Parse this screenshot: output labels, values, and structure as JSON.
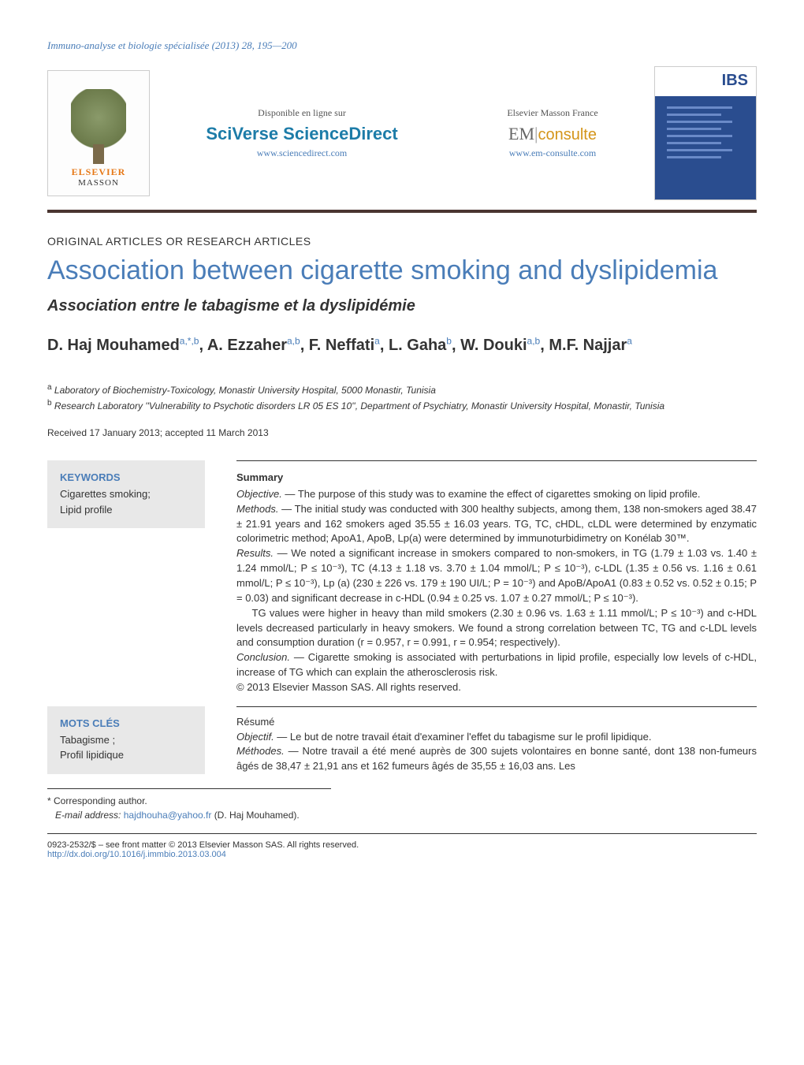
{
  "journal_ref": "Immuno-analyse et biologie spécialisée (2013) 28, 195—200",
  "banner": {
    "elsevier_logo": {
      "line1": "ELSEVIER",
      "line2": "MASSON"
    },
    "center": {
      "left": {
        "label": "Disponible en ligne sur",
        "brand": "SciVerse ScienceDirect",
        "url": "www.sciencedirect.com"
      },
      "right": {
        "label": "Elsevier Masson France",
        "brand_em": "EM",
        "brand_con": "consulte",
        "url": "www.em-consulte.com"
      }
    },
    "cover_badge": "IBS"
  },
  "section_label": "ORIGINAL ARTICLES OR RESEARCH ARTICLES",
  "title": "Association between cigarette smoking and dyslipidemia",
  "subtitle": "Association entre le tabagisme et la dyslipidémie",
  "authors_html": "D. Haj Mouhamed<sup>a,*,b</sup>, A. Ezzaher<sup>a,b</sup>, F. Neffati<sup>a</sup>, L. Gaha<sup>b</sup>, W. Douki<sup>a,b</sup>, M.F. Najjar<sup>a</sup>",
  "affiliations": {
    "a": "Laboratory of Biochemistry-Toxicology, Monastir University Hospital, 5000 Monastir, Tunisia",
    "b": "Research Laboratory ''Vulnerability to Psychotic disorders LR 05 ES 10'', Department of Psychiatry, Monastir University Hospital, Monastir, Tunisia"
  },
  "dates": "Received 17 January 2013; accepted 11 March 2013",
  "keywords": {
    "head": "KEYWORDS",
    "body": "Cigarettes smoking;\nLipid profile"
  },
  "summary": {
    "head": "Summary",
    "objective": "The purpose of this study was to examine the effect of cigarettes smoking on lipid profile.",
    "methods": "The initial study was conducted with 300 healthy subjects, among them, 138 non-smokers aged 38.47 ± 21.91 years and 162 smokers aged 35.55 ± 16.03 years. TG, TC, cHDL, cLDL were determined by enzymatic colorimetric method; ApoA1, ApoB, Lp(a) were determined by immunoturbidimetry on Konélab 30™.",
    "results": "We noted a significant increase in smokers compared to non-smokers, in TG (1.79 ± 1.03 vs. 1.40 ± 1.24 mmol/L; P ≤ 10⁻³), TC (4.13 ± 1.18 vs. 3.70 ± 1.04 mmol/L; P ≤ 10⁻³), c-LDL (1.35 ± 0.56 vs. 1.16 ± 0.61 mmol/L; P ≤ 10⁻³), Lp (a) (230 ± 226 vs. 179 ± 190 UI/L; P = 10⁻³) and ApoB/ApoA1 (0.83 ± 0.52 vs. 0.52 ± 0.15; P = 0.03) and significant decrease in c-HDL (0.94 ± 0.25 vs. 1.07 ± 0.27 mmol/L; P ≤ 10⁻³).",
    "results2": "TG values were higher in heavy than mild smokers (2.30 ± 0.96 vs. 1.63 ± 1.11 mmol/L; P ≤ 10⁻³) and c-HDL levels decreased particularly in heavy smokers. We found a strong correlation between TC, TG and c-LDL levels and consumption duration (r = 0.957, r = 0.991, r = 0.954; respectively).",
    "conclusion": "Cigarette smoking is associated with perturbations in lipid profile, especially low levels of c-HDL, increase of TG which can explain the atherosclerosis risk.",
    "copyright": "© 2013 Elsevier Masson SAS. All rights reserved."
  },
  "motscles": {
    "head": "MOTS CLÉS",
    "body": "Tabagisme ;\nProfil lipidique"
  },
  "resume": {
    "head": "Résumé",
    "objectif": "Le but de notre travail était d'examiner l'effet du tabagisme sur le profil lipidique.",
    "methodes": "Notre travail a été mené auprès de 300 sujets volontaires en bonne santé, dont 138 non-fumeurs âgés de 38,47 ± 21,91 ans et 162 fumeurs âgés de 35,55 ± 16,03 ans. Les"
  },
  "corresponding": {
    "label": "* Corresponding author.",
    "email_label": "E-mail address:",
    "email": "hajdhouha@yahoo.fr",
    "person": "(D. Haj Mouhamed)."
  },
  "footer": {
    "copyright": "0923-2532/$ – see front matter © 2013 Elsevier Masson SAS. All rights reserved.",
    "doi": "http://dx.doi.org/10.1016/j.immbio.2013.03.004"
  },
  "colors": {
    "link_blue": "#4a7db8",
    "dark_bar": "#4a3530",
    "orange": "#e67817",
    "ibs_blue": "#2a4d8f",
    "grey_box": "#e8e8e8"
  }
}
